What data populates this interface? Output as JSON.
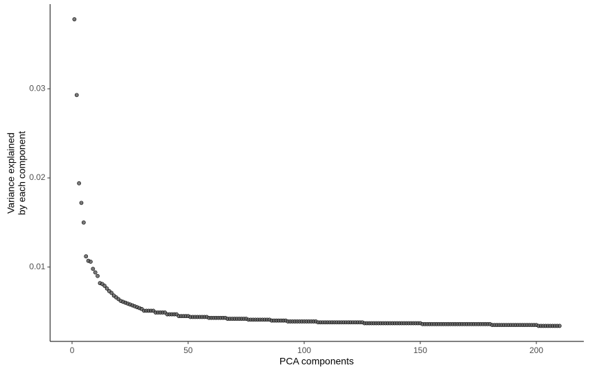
{
  "chart_data": {
    "type": "scatter",
    "xlabel": "PCA components",
    "ylabel": [
      "Variance explained",
      "by each component"
    ],
    "color": "#595959",
    "xlim": [
      -9.45,
      220.45
    ],
    "xticks": [
      0,
      50,
      100,
      150,
      200
    ],
    "ylim": [
      0.00166,
      0.0395
    ],
    "yticks": [
      0.01,
      0.02,
      0.03
    ],
    "grid": false,
    "x": [
      1,
      2,
      3,
      4,
      5,
      6,
      7,
      8,
      9,
      10,
      11,
      12,
      13,
      14,
      15,
      16,
      17,
      18,
      19,
      20,
      21,
      22,
      23,
      24,
      25,
      26,
      27,
      28,
      29,
      30,
      31,
      32,
      33,
      34,
      35,
      36,
      37,
      38,
      39,
      40,
      41,
      42,
      43,
      44,
      45,
      46,
      47,
      48,
      49,
      50,
      51,
      52,
      53,
      54,
      55,
      56,
      57,
      58,
      59,
      60,
      61,
      62,
      63,
      64,
      65,
      66,
      67,
      68,
      69,
      70,
      71,
      72,
      73,
      74,
      75,
      76,
      77,
      78,
      79,
      80,
      81,
      82,
      83,
      84,
      85,
      86,
      87,
      88,
      89,
      90,
      91,
      92,
      93,
      94,
      95,
      96,
      97,
      98,
      99,
      100,
      101,
      102,
      103,
      104,
      105,
      106,
      107,
      108,
      109,
      110,
      111,
      112,
      113,
      114,
      115,
      116,
      117,
      118,
      119,
      120,
      121,
      122,
      123,
      124,
      125,
      126,
      127,
      128,
      129,
      130,
      131,
      132,
      133,
      134,
      135,
      136,
      137,
      138,
      139,
      140,
      141,
      142,
      143,
      144,
      145,
      146,
      147,
      148,
      149,
      150,
      151,
      152,
      153,
      154,
      155,
      156,
      157,
      158,
      159,
      160,
      161,
      162,
      163,
      164,
      165,
      166,
      167,
      168,
      169,
      170,
      171,
      172,
      173,
      174,
      175,
      176,
      177,
      178,
      179,
      180,
      181,
      182,
      183,
      184,
      185,
      186,
      187,
      188,
      189,
      190,
      191,
      192,
      193,
      194,
      195,
      196,
      197,
      198,
      199,
      200,
      201,
      202,
      203,
      204,
      205,
      206,
      207,
      208,
      209,
      210
    ],
    "values": [
      0.0378,
      0.0293,
      0.0194,
      0.0172,
      0.015,
      0.0112,
      0.0107,
      0.0106,
      0.0098,
      0.0094,
      0.009,
      0.0082,
      0.0081,
      0.0079,
      0.0076,
      0.0073,
      0.0071,
      0.0068,
      0.0066,
      0.0064,
      0.0062,
      0.0061,
      0.006,
      0.0059,
      0.0058,
      0.0057,
      0.0056,
      0.0055,
      0.0054,
      0.0053,
      0.0051,
      0.0051,
      0.0051,
      0.0051,
      0.0051,
      0.0049,
      0.0049,
      0.0049,
      0.0049,
      0.0049,
      0.0047,
      0.0047,
      0.0047,
      0.0047,
      0.0047,
      0.0045,
      0.0045,
      0.0045,
      0.0045,
      0.0045,
      0.0044,
      0.0044,
      0.0044,
      0.0044,
      0.0044,
      0.0044,
      0.0044,
      0.0044,
      0.0043,
      0.0043,
      0.0043,
      0.0043,
      0.0043,
      0.0043,
      0.0043,
      0.0043,
      0.0042,
      0.0042,
      0.0042,
      0.0042,
      0.0042,
      0.0042,
      0.0042,
      0.0042,
      0.0042,
      0.0041,
      0.0041,
      0.0041,
      0.0041,
      0.0041,
      0.0041,
      0.0041,
      0.0041,
      0.0041,
      0.0041,
      0.004,
      0.004,
      0.004,
      0.004,
      0.004,
      0.004,
      0.004,
      0.0039,
      0.0039,
      0.0039,
      0.0039,
      0.0039,
      0.0039,
      0.0039,
      0.0039,
      0.0039,
      0.0039,
      0.0039,
      0.0039,
      0.0039,
      0.0038,
      0.0038,
      0.0038,
      0.0038,
      0.0038,
      0.0038,
      0.0038,
      0.0038,
      0.0038,
      0.0038,
      0.0038,
      0.0038,
      0.0038,
      0.0038,
      0.0038,
      0.0038,
      0.0038,
      0.0038,
      0.0038,
      0.0038,
      0.0037,
      0.0037,
      0.0037,
      0.0037,
      0.0037,
      0.0037,
      0.0037,
      0.0037,
      0.0037,
      0.0037,
      0.0037,
      0.0037,
      0.0037,
      0.0037,
      0.0037,
      0.0037,
      0.0037,
      0.0037,
      0.0037,
      0.0037,
      0.0037,
      0.0037,
      0.0037,
      0.0037,
      0.0037,
      0.0036,
      0.0036,
      0.0036,
      0.0036,
      0.0036,
      0.0036,
      0.0036,
      0.0036,
      0.0036,
      0.0036,
      0.0036,
      0.0036,
      0.0036,
      0.0036,
      0.0036,
      0.0036,
      0.0036,
      0.0036,
      0.0036,
      0.0036,
      0.0036,
      0.0036,
      0.0036,
      0.0036,
      0.0036,
      0.0036,
      0.0036,
      0.0036,
      0.0036,
      0.0036,
      0.0035,
      0.0035,
      0.0035,
      0.0035,
      0.0035,
      0.0035,
      0.0035,
      0.0035,
      0.0035,
      0.0035,
      0.0035,
      0.0035,
      0.0035,
      0.0035,
      0.0035,
      0.0035,
      0.0035,
      0.0035,
      0.0035,
      0.0035,
      0.0034,
      0.0034,
      0.0034,
      0.0034,
      0.0034,
      0.0034,
      0.0034,
      0.0034,
      0.0034,
      0.0034
    ]
  }
}
